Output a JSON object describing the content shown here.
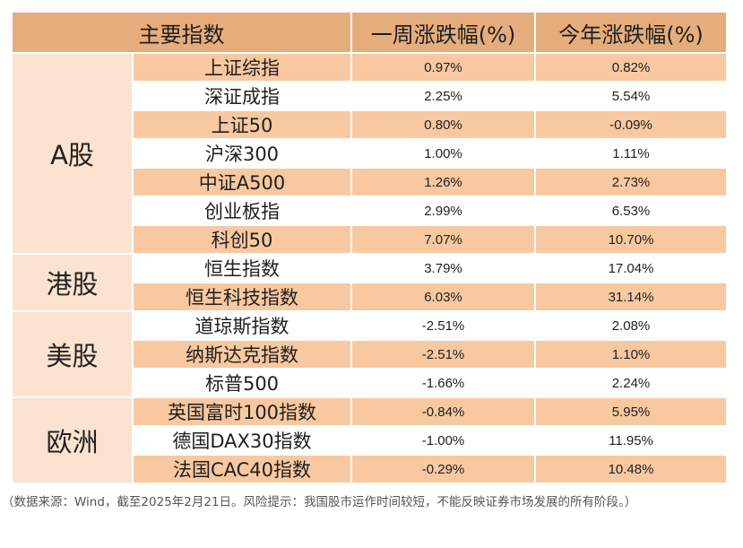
{
  "header": {
    "index": "主要指数",
    "weekly": "一周涨跌幅(%)",
    "ytd": "今年涨跌幅(%)"
  },
  "groups": [
    {
      "name": "A股",
      "rows": [
        {
          "index": "上证综指",
          "weekly": "0.97%",
          "ytd": "0.82%"
        },
        {
          "index": "深证成指",
          "weekly": "2.25%",
          "ytd": "5.54%"
        },
        {
          "index": "上证50",
          "weekly": "0.80%",
          "ytd": "-0.09%"
        },
        {
          "index": "沪深300",
          "weekly": "1.00%",
          "ytd": "1.11%"
        },
        {
          "index": "中证A500",
          "weekly": "1.26%",
          "ytd": "2.73%"
        },
        {
          "index": "创业板指",
          "weekly": "2.99%",
          "ytd": "6.53%"
        },
        {
          "index": "科创50",
          "weekly": "7.07%",
          "ytd": "10.70%"
        }
      ]
    },
    {
      "name": "港股",
      "rows": [
        {
          "index": "恒生指数",
          "weekly": "3.79%",
          "ytd": "17.04%"
        },
        {
          "index": "恒生科技指数",
          "weekly": "6.03%",
          "ytd": "31.14%"
        }
      ]
    },
    {
      "name": "美股",
      "rows": [
        {
          "index": "道琼斯指数",
          "weekly": "-2.51%",
          "ytd": "2.08%"
        },
        {
          "index": "纳斯达克指数",
          "weekly": "-2.51%",
          "ytd": "1.10%"
        },
        {
          "index": "标普500",
          "weekly": "-1.66%",
          "ytd": "2.24%"
        }
      ]
    },
    {
      "name": "欧洲",
      "rows": [
        {
          "index": "英国富时100指数",
          "weekly": "-0.84%",
          "ytd": "5.95%"
        },
        {
          "index": "德国DAX30指数",
          "weekly": "-1.00%",
          "ytd": "11.95%"
        },
        {
          "index": "法国CAC40指数",
          "weekly": "-0.29%",
          "ytd": "10.48%"
        }
      ]
    }
  ],
  "footnote": "（数据来源：Wind，截至2025年2月21日。风险提示：我国股市运作时间较短，不能反映证券市场发展的所有阶段。）",
  "colors": {
    "header_bg": "#e6ad7c",
    "row_alt_bg": "#f8c8a0",
    "group_bg": "#fbe3d0"
  }
}
